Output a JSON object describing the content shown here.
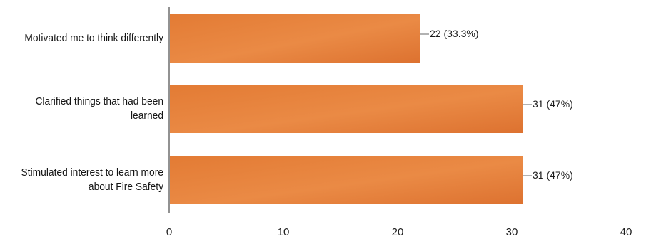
{
  "chart_data": {
    "type": "bar",
    "orientation": "horizontal",
    "categories": [
      "Motivated me to think differently",
      "Clarified things that had been learned",
      "Stimulated interest to learn more about Fire Safety"
    ],
    "values": [
      22,
      31,
      31
    ],
    "data_labels": [
      "22 (33.3%)",
      "31 (47%)",
      "31 (47%)"
    ],
    "xticks": [
      "0",
      "10",
      "20",
      "30",
      "40"
    ],
    "xlim": [
      0,
      40
    ],
    "grid": false,
    "legend": "none",
    "bar_color": "#e8823a",
    "bar_color_dark": "#d96a26"
  }
}
